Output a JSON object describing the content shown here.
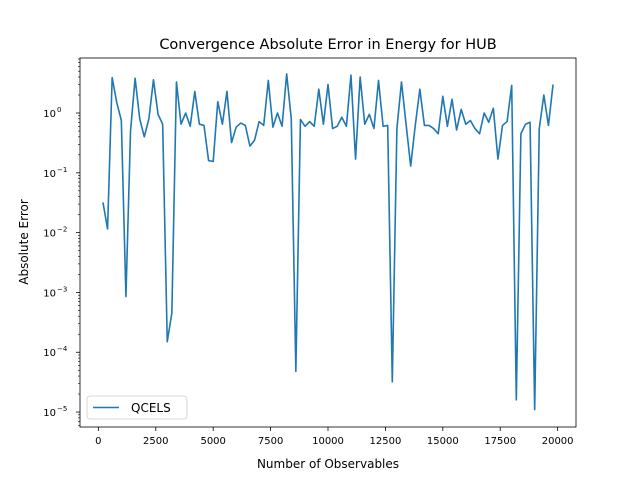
{
  "chart_data": {
    "type": "line",
    "title": "Convergence Absolute Error in Energy for HUB",
    "xlabel": "Number of Observables",
    "ylabel": "Absolute Error",
    "yscale": "log",
    "xlim": [
      -800,
      20800
    ],
    "ylim_log10": [
      -5.25,
      0.92
    ],
    "grid": false,
    "legend_position": "lower-left",
    "x_ticks": [
      0,
      2500,
      5000,
      7500,
      10000,
      12500,
      15000,
      17500,
      20000
    ],
    "y_ticks": [
      {
        "exp": -5,
        "label": "10^-5"
      },
      {
        "exp": -4,
        "label": "10^-4"
      },
      {
        "exp": -3,
        "label": "10^-3"
      },
      {
        "exp": -2,
        "label": "10^-2"
      },
      {
        "exp": -1,
        "label": "10^-1"
      },
      {
        "exp": 0,
        "label": "10^0"
      }
    ],
    "series": [
      {
        "name": "QCELS",
        "color": "#1f77b4",
        "x": [
          200,
          400,
          600,
          800,
          1000,
          1200,
          1400,
          1600,
          1800,
          2000,
          2200,
          2400,
          2600,
          2800,
          3000,
          3200,
          3400,
          3600,
          3800,
          4000,
          4200,
          4400,
          4600,
          4800,
          5000,
          5200,
          5400,
          5600,
          5800,
          6000,
          6200,
          6400,
          6600,
          6800,
          7000,
          7200,
          7400,
          7600,
          7800,
          8000,
          8200,
          8400,
          8600,
          8800,
          9000,
          9200,
          9400,
          9600,
          9800,
          10000,
          10200,
          10400,
          10600,
          10800,
          11000,
          11200,
          11400,
          11600,
          11800,
          12000,
          12200,
          12400,
          12600,
          12800,
          13000,
          13200,
          13400,
          13600,
          13800,
          14000,
          14200,
          14400,
          14600,
          14800,
          15000,
          15200,
          15400,
          15600,
          15800,
          16000,
          16200,
          16400,
          16600,
          16800,
          17000,
          17200,
          17400,
          17600,
          17800,
          18000,
          18200,
          18400,
          18600,
          18800,
          19000,
          19200,
          19400,
          19600,
          19800
        ],
        "y": [
          0.032,
          0.0115,
          3.9,
          1.5,
          0.75,
          0.00085,
          0.5,
          3.8,
          0.8,
          0.4,
          0.8,
          3.6,
          0.95,
          0.65,
          0.00015,
          0.00045,
          3.3,
          0.65,
          1.0,
          0.6,
          2.3,
          0.65,
          0.62,
          0.16,
          0.155,
          1.55,
          0.65,
          2.3,
          0.32,
          0.58,
          0.68,
          0.62,
          0.28,
          0.35,
          0.72,
          0.62,
          3.5,
          0.58,
          1.0,
          0.6,
          4.5,
          0.8,
          4.8e-05,
          0.78,
          0.6,
          0.72,
          0.6,
          2.5,
          0.65,
          3.0,
          0.55,
          0.6,
          0.85,
          0.6,
          4.3,
          0.17,
          4.0,
          0.65,
          0.95,
          0.55,
          3.5,
          0.6,
          0.62,
          3.2e-05,
          0.55,
          3.3,
          0.65,
          0.13,
          0.62,
          2.5,
          0.62,
          0.62,
          0.55,
          0.45,
          1.9,
          0.6,
          1.7,
          0.52,
          1.15,
          0.65,
          0.75,
          0.55,
          0.45,
          1.0,
          0.7,
          1.2,
          0.17,
          0.62,
          0.72,
          2.9,
          1.6e-05,
          0.45,
          0.65,
          0.7,
          1.1e-05,
          0.55,
          2.0,
          0.62,
          3.0
        ]
      }
    ]
  }
}
